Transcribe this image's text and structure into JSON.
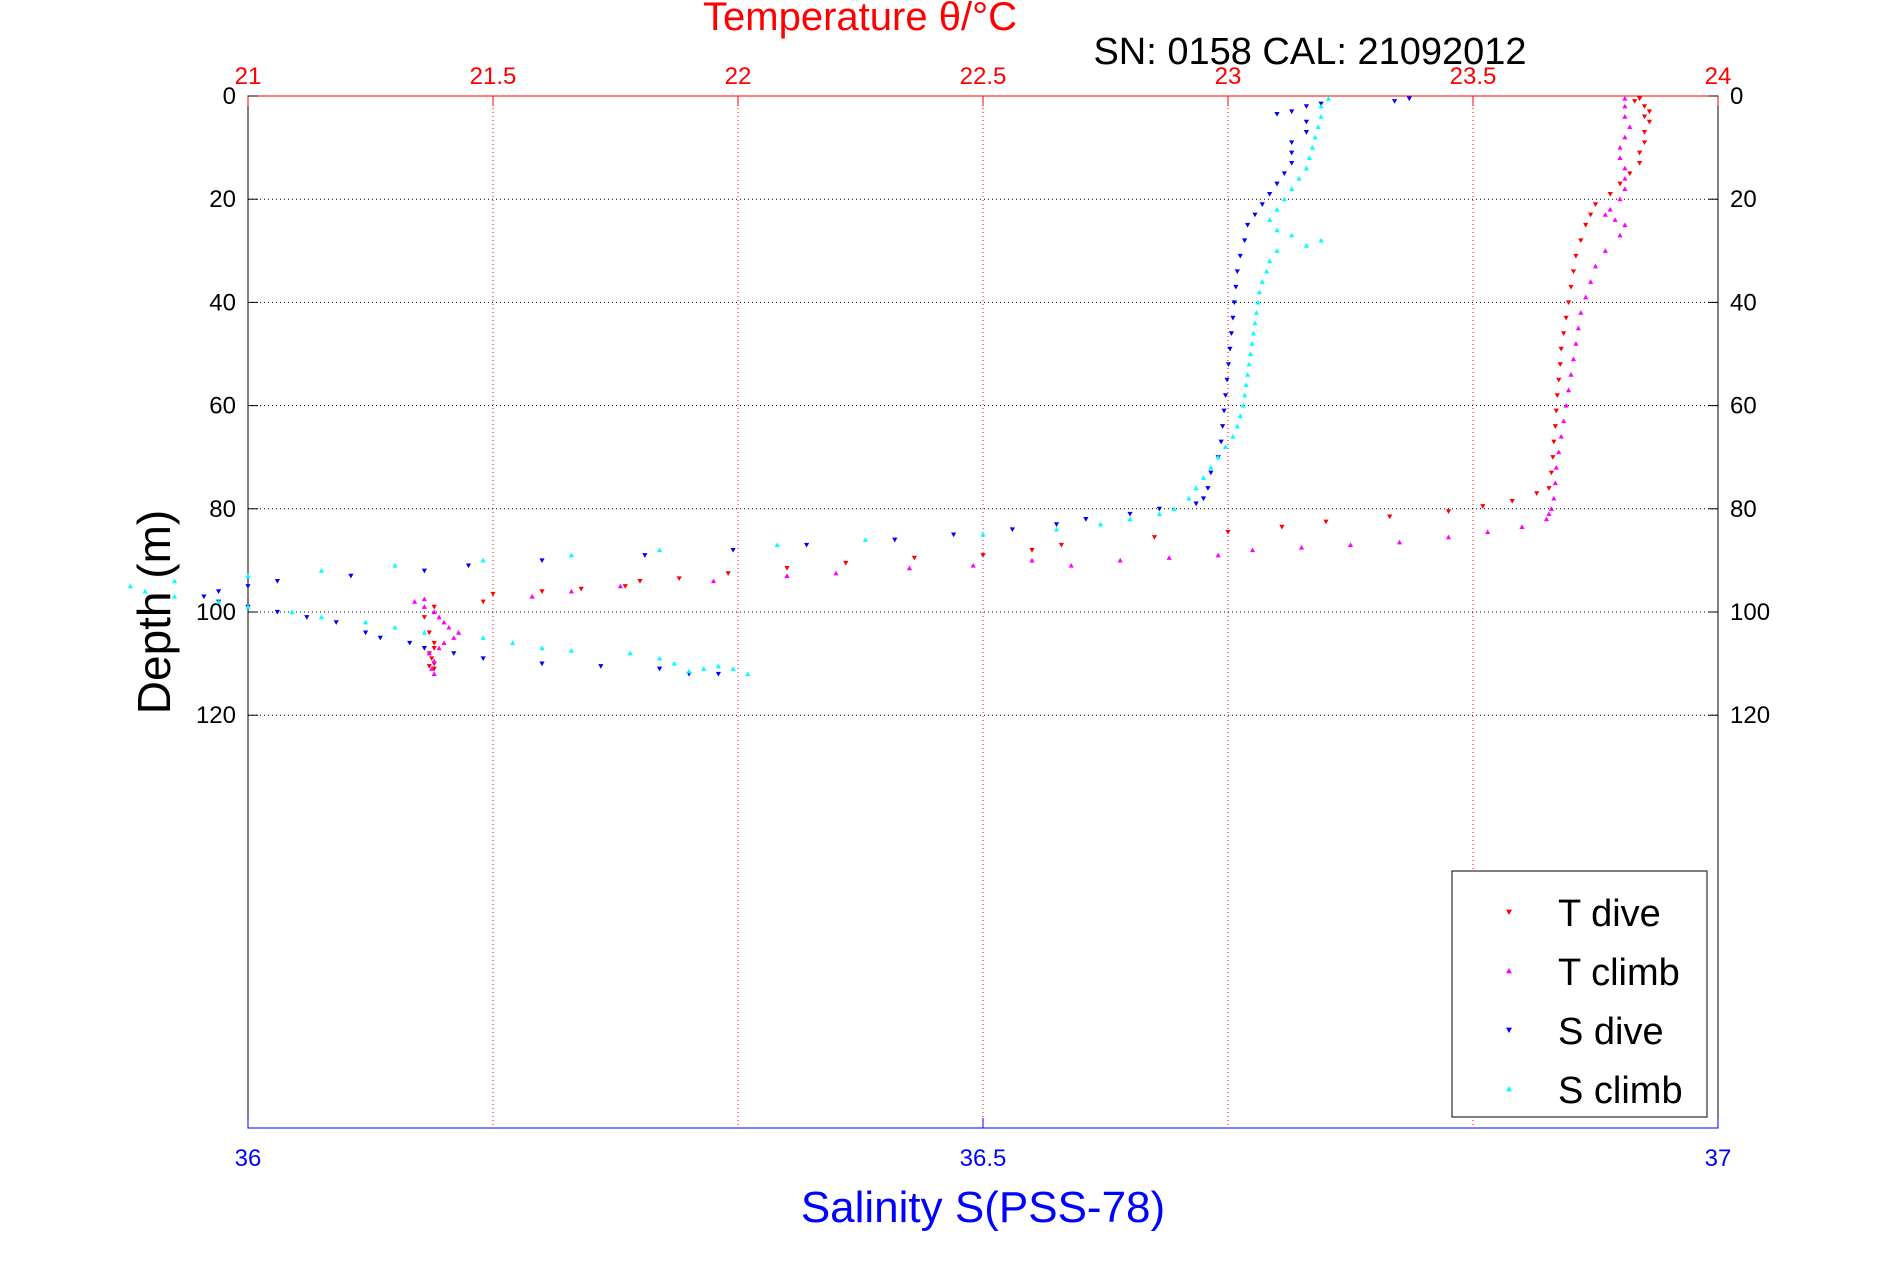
{
  "chart_data": {
    "type": "scatter",
    "title": "Temperature θ/°C",
    "subtitle": "SN: 0158  CAL: 21092012",
    "xlabel_bottom": "Salinity S(PSS-78)",
    "ylabel": "Depth (m)",
    "colors": {
      "temperature_axis": "#ff0000",
      "salinity_axis": "#0000ff",
      "t_dive": "#ff0000",
      "t_climb": "#ff00ff",
      "s_dive": "#0000ff",
      "s_climb": "#00ffff",
      "grid": "#000000"
    },
    "axes": {
      "x_top": {
        "label": "Temperature θ/°C",
        "range": [
          21,
          24
        ],
        "ticks": [
          21,
          21.5,
          22,
          22.5,
          23,
          23.5,
          24
        ],
        "tick_labels": [
          "21",
          "21.5",
          "22",
          "22.5",
          "23",
          "23.5",
          "24"
        ]
      },
      "x_bottom": {
        "label": "Salinity S(PSS-78)",
        "range": [
          36,
          37
        ],
        "ticks": [
          36,
          36.5,
          37
        ],
        "tick_labels": [
          "36",
          "36.5",
          "37"
        ]
      },
      "y": {
        "label": "Depth (m)",
        "range": [
          0,
          200
        ],
        "reversed": true,
        "ticks": [
          0,
          20,
          40,
          60,
          80,
          100,
          120
        ],
        "tick_labels": [
          "0",
          "20",
          "40",
          "60",
          "80",
          "100",
          "120"
        ]
      }
    },
    "grid": "dotted",
    "legend_position": "bottom-right",
    "series": [
      {
        "name": "T dive",
        "axis": "temperature",
        "marker": "triangle-down",
        "color": "#ff0000",
        "points": [
          [
            23.84,
            0.5
          ],
          [
            23.83,
            1
          ],
          [
            23.85,
            2
          ],
          [
            23.86,
            3
          ],
          [
            23.85,
            4
          ],
          [
            23.86,
            5
          ],
          [
            23.85,
            7
          ],
          [
            23.85,
            9
          ],
          [
            23.84,
            11
          ],
          [
            23.84,
            13
          ],
          [
            23.82,
            15
          ],
          [
            23.8,
            17
          ],
          [
            23.78,
            19
          ],
          [
            23.75,
            21
          ],
          [
            23.74,
            23
          ],
          [
            23.73,
            25
          ],
          [
            23.72,
            28
          ],
          [
            23.71,
            31
          ],
          [
            23.705,
            34
          ],
          [
            23.7,
            37
          ],
          [
            23.695,
            40
          ],
          [
            23.69,
            43
          ],
          [
            23.685,
            46
          ],
          [
            23.68,
            49
          ],
          [
            23.678,
            52
          ],
          [
            23.675,
            55
          ],
          [
            23.672,
            58
          ],
          [
            23.67,
            61
          ],
          [
            23.668,
            64
          ],
          [
            23.665,
            67
          ],
          [
            23.663,
            70
          ],
          [
            23.66,
            73
          ],
          [
            23.655,
            76
          ],
          [
            23.63,
            77
          ],
          [
            23.58,
            78.5
          ],
          [
            23.52,
            79.5
          ],
          [
            23.45,
            80.5
          ],
          [
            23.33,
            81.5
          ],
          [
            23.2,
            82.5
          ],
          [
            23.11,
            83.5
          ],
          [
            23.0,
            84.5
          ],
          [
            22.85,
            85.5
          ],
          [
            22.66,
            87
          ],
          [
            22.6,
            88
          ],
          [
            22.5,
            89
          ],
          [
            22.36,
            89.5
          ],
          [
            22.22,
            90.5
          ],
          [
            22.1,
            91.5
          ],
          [
            21.98,
            92.5
          ],
          [
            21.88,
            93.5
          ],
          [
            21.8,
            94
          ],
          [
            21.77,
            95
          ],
          [
            21.68,
            95.5
          ],
          [
            21.6,
            96
          ],
          [
            21.5,
            96.5
          ],
          [
            21.48,
            98
          ],
          [
            21.38,
            99
          ],
          [
            21.36,
            101
          ],
          [
            21.37,
            104
          ],
          [
            21.38,
            106
          ],
          [
            21.38,
            107
          ],
          [
            21.37,
            108
          ],
          [
            21.375,
            109
          ],
          [
            21.38,
            110
          ],
          [
            21.37,
            110.5
          ],
          [
            21.38,
            111
          ]
        ]
      },
      {
        "name": "T climb",
        "axis": "temperature",
        "marker": "triangle-up",
        "color": "#ff00ff",
        "points": [
          [
            21.38,
            112
          ],
          [
            21.375,
            111
          ],
          [
            21.38,
            109.5
          ],
          [
            21.37,
            108
          ],
          [
            21.39,
            107
          ],
          [
            21.4,
            106
          ],
          [
            21.42,
            105
          ],
          [
            21.43,
            104
          ],
          [
            21.41,
            103
          ],
          [
            21.4,
            102
          ],
          [
            21.39,
            101
          ],
          [
            21.38,
            100
          ],
          [
            21.36,
            99
          ],
          [
            21.34,
            98
          ],
          [
            21.36,
            97.5
          ],
          [
            21.58,
            97
          ],
          [
            21.66,
            96
          ],
          [
            21.76,
            95
          ],
          [
            21.95,
            94
          ],
          [
            22.1,
            93
          ],
          [
            22.2,
            92.5
          ],
          [
            22.35,
            91.5
          ],
          [
            22.48,
            91
          ],
          [
            22.6,
            90
          ],
          [
            22.68,
            91
          ],
          [
            22.78,
            90
          ],
          [
            22.88,
            89.5
          ],
          [
            22.98,
            89
          ],
          [
            23.05,
            88
          ],
          [
            23.15,
            87.5
          ],
          [
            23.25,
            87
          ],
          [
            23.35,
            86.5
          ],
          [
            23.45,
            85.5
          ],
          [
            23.53,
            84.5
          ],
          [
            23.6,
            83.5
          ],
          [
            23.65,
            82
          ],
          [
            23.655,
            81
          ],
          [
            23.66,
            80
          ],
          [
            23.665,
            78
          ],
          [
            23.668,
            75
          ],
          [
            23.67,
            72
          ],
          [
            23.675,
            69
          ],
          [
            23.68,
            66
          ],
          [
            23.685,
            63
          ],
          [
            23.69,
            60
          ],
          [
            23.695,
            57
          ],
          [
            23.7,
            54
          ],
          [
            23.705,
            51
          ],
          [
            23.71,
            48
          ],
          [
            23.715,
            45
          ],
          [
            23.72,
            42
          ],
          [
            23.73,
            39
          ],
          [
            23.74,
            36
          ],
          [
            23.75,
            33
          ],
          [
            23.77,
            30
          ],
          [
            23.8,
            27
          ],
          [
            23.81,
            25
          ],
          [
            23.79,
            24
          ],
          [
            23.77,
            23
          ],
          [
            23.78,
            22
          ],
          [
            23.8,
            20
          ],
          [
            23.81,
            18
          ],
          [
            23.81,
            16
          ],
          [
            23.81,
            14
          ],
          [
            23.8,
            12
          ],
          [
            23.8,
            10
          ],
          [
            23.81,
            8
          ],
          [
            23.82,
            6
          ],
          [
            23.81,
            4
          ],
          [
            23.81,
            2
          ],
          [
            23.81,
            0.5
          ]
        ]
      },
      {
        "name": "S dive",
        "axis": "salinity",
        "marker": "triangle-down",
        "color": "#0000ff",
        "points": [
          [
            36.79,
            0.5
          ],
          [
            36.78,
            1
          ],
          [
            36.73,
            1.5
          ],
          [
            36.72,
            2
          ],
          [
            36.71,
            3
          ],
          [
            36.7,
            3.5
          ],
          [
            36.72,
            5
          ],
          [
            36.72,
            7
          ],
          [
            36.71,
            9
          ],
          [
            36.71,
            11
          ],
          [
            36.71,
            13
          ],
          [
            36.705,
            15
          ],
          [
            36.7,
            17
          ],
          [
            36.695,
            19
          ],
          [
            36.69,
            21
          ],
          [
            36.685,
            23
          ],
          [
            36.68,
            25
          ],
          [
            36.678,
            28
          ],
          [
            36.675,
            31
          ],
          [
            36.673,
            34
          ],
          [
            36.672,
            37
          ],
          [
            36.671,
            40
          ],
          [
            36.67,
            43
          ],
          [
            36.669,
            46
          ],
          [
            36.668,
            49
          ],
          [
            36.667,
            52
          ],
          [
            36.666,
            55
          ],
          [
            36.665,
            58
          ],
          [
            36.664,
            61
          ],
          [
            36.663,
            64
          ],
          [
            36.662,
            67
          ],
          [
            36.66,
            70
          ],
          [
            36.655,
            73
          ],
          [
            36.653,
            76
          ],
          [
            36.65,
            78
          ],
          [
            36.645,
            79
          ],
          [
            36.62,
            80
          ],
          [
            36.6,
            81
          ],
          [
            36.57,
            82
          ],
          [
            36.55,
            83
          ],
          [
            36.52,
            84
          ],
          [
            36.48,
            85
          ],
          [
            36.44,
            86
          ],
          [
            36.38,
            87
          ],
          [
            36.33,
            88
          ],
          [
            36.27,
            89
          ],
          [
            36.2,
            90
          ],
          [
            36.15,
            91
          ],
          [
            36.12,
            92
          ],
          [
            36.07,
            93
          ],
          [
            36.02,
            94
          ],
          [
            36.0,
            95
          ],
          [
            35.98,
            96
          ],
          [
            35.97,
            97
          ],
          [
            35.98,
            98
          ],
          [
            36.0,
            99
          ],
          [
            36.02,
            100
          ],
          [
            36.04,
            101
          ],
          [
            36.06,
            102
          ],
          [
            36.08,
            104
          ],
          [
            36.09,
            105
          ],
          [
            36.11,
            106
          ],
          [
            36.12,
            107
          ],
          [
            36.14,
            108
          ],
          [
            36.16,
            109
          ],
          [
            36.2,
            110
          ],
          [
            36.24,
            110.5
          ],
          [
            36.28,
            111
          ],
          [
            36.3,
            112
          ],
          [
            36.32,
            112
          ]
        ]
      },
      {
        "name": "S climb",
        "axis": "salinity",
        "marker": "triangle-up",
        "color": "#00ffff",
        "points": [
          [
            36.34,
            112
          ],
          [
            36.33,
            111
          ],
          [
            36.32,
            110.5
          ],
          [
            36.31,
            111
          ],
          [
            36.3,
            111.5
          ],
          [
            36.29,
            110
          ],
          [
            36.28,
            109
          ],
          [
            36.26,
            108
          ],
          [
            36.22,
            107.5
          ],
          [
            36.2,
            107
          ],
          [
            36.18,
            106
          ],
          [
            36.16,
            105
          ],
          [
            36.12,
            104
          ],
          [
            36.1,
            103
          ],
          [
            36.08,
            102
          ],
          [
            36.05,
            101
          ],
          [
            36.03,
            100
          ],
          [
            36.0,
            99
          ],
          [
            35.98,
            98
          ],
          [
            35.95,
            97
          ],
          [
            35.93,
            96
          ],
          [
            35.92,
            95
          ],
          [
            35.95,
            94
          ],
          [
            36.0,
            93
          ],
          [
            36.05,
            92
          ],
          [
            36.1,
            91
          ],
          [
            36.16,
            90
          ],
          [
            36.22,
            89
          ],
          [
            36.28,
            88
          ],
          [
            36.36,
            87
          ],
          [
            36.42,
            86
          ],
          [
            36.5,
            85
          ],
          [
            36.55,
            84
          ],
          [
            36.58,
            83
          ],
          [
            36.6,
            82
          ],
          [
            36.62,
            81
          ],
          [
            36.63,
            80
          ],
          [
            36.64,
            78
          ],
          [
            36.645,
            76
          ],
          [
            36.65,
            74
          ],
          [
            36.655,
            72
          ],
          [
            36.66,
            70
          ],
          [
            36.665,
            68
          ],
          [
            36.67,
            66
          ],
          [
            36.673,
            64
          ],
          [
            36.675,
            62
          ],
          [
            36.677,
            60
          ],
          [
            36.678,
            58
          ],
          [
            36.679,
            56
          ],
          [
            36.68,
            54
          ],
          [
            36.681,
            52
          ],
          [
            36.682,
            50
          ],
          [
            36.683,
            48
          ],
          [
            36.684,
            46
          ],
          [
            36.685,
            44
          ],
          [
            36.686,
            42
          ],
          [
            36.687,
            40
          ],
          [
            36.688,
            38
          ],
          [
            36.69,
            36
          ],
          [
            36.693,
            34
          ],
          [
            36.695,
            32
          ],
          [
            36.7,
            30
          ],
          [
            36.72,
            29
          ],
          [
            36.73,
            28
          ],
          [
            36.71,
            27
          ],
          [
            36.7,
            26
          ],
          [
            36.695,
            24
          ],
          [
            36.7,
            22
          ],
          [
            36.705,
            20
          ],
          [
            36.71,
            18
          ],
          [
            36.715,
            16
          ],
          [
            36.72,
            14
          ],
          [
            36.722,
            12
          ],
          [
            36.724,
            10
          ],
          [
            36.726,
            8
          ],
          [
            36.728,
            6
          ],
          [
            36.73,
            4
          ],
          [
            36.73,
            2
          ],
          [
            36.735,
            0.5
          ]
        ]
      }
    ],
    "legend": [
      {
        "label": "T dive",
        "marker": "triangle-down",
        "color": "#ff0000"
      },
      {
        "label": "T climb",
        "marker": "triangle-up",
        "color": "#ff00ff"
      },
      {
        "label": "S dive",
        "marker": "triangle-down",
        "color": "#0000ff"
      },
      {
        "label": "S climb",
        "marker": "triangle-up",
        "color": "#00ffff"
      }
    ]
  }
}
